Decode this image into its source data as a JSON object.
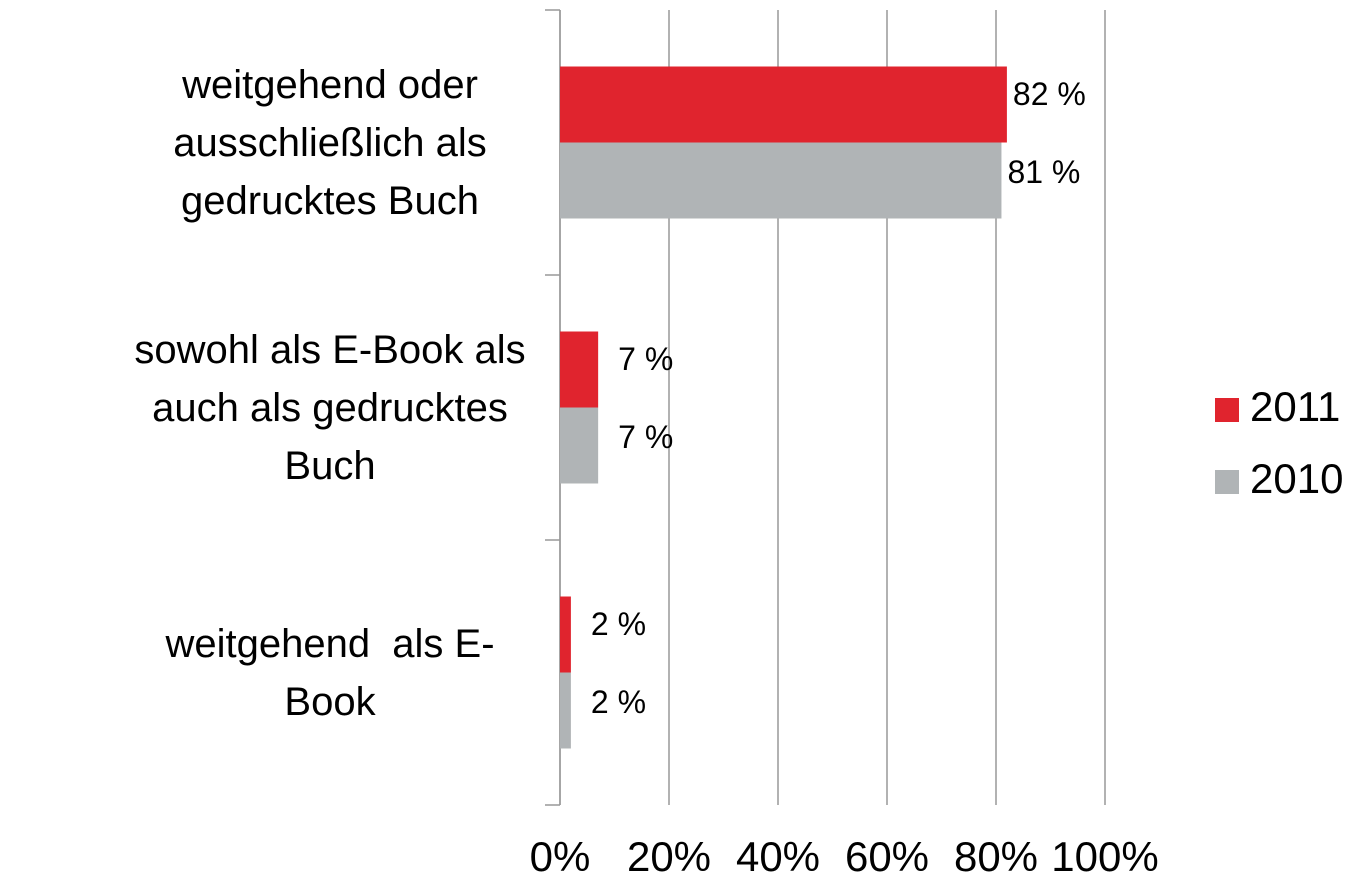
{
  "chart_data": {
    "type": "bar",
    "orientation": "horizontal",
    "categories": [
      "weitgehend oder ausschließlich als gedrucktes Buch",
      "sowohl als E-Book als auch als gedrucktes Buch",
      "weitgehend  als E-Book"
    ],
    "series": [
      {
        "name": "2011",
        "color": "#e0242e",
        "values": [
          82,
          7,
          2
        ],
        "value_labels": [
          "82 %",
          "7 %",
          "2 %"
        ]
      },
      {
        "name": "2010",
        "color": "#b0b4b6",
        "values": [
          81,
          7,
          2
        ],
        "value_labels": [
          "81 %",
          "7 %",
          "2 %"
        ]
      }
    ],
    "xlim": [
      0,
      100
    ],
    "xticks": [
      {
        "value": 0,
        "label": "0%"
      },
      {
        "value": 20,
        "label": "20%"
      },
      {
        "value": 40,
        "label": "40%"
      },
      {
        "value": 60,
        "label": "60%"
      },
      {
        "value": 80,
        "label": "80%"
      },
      {
        "value": 100,
        "label": "100%"
      }
    ],
    "grid": true,
    "legend": "right"
  }
}
